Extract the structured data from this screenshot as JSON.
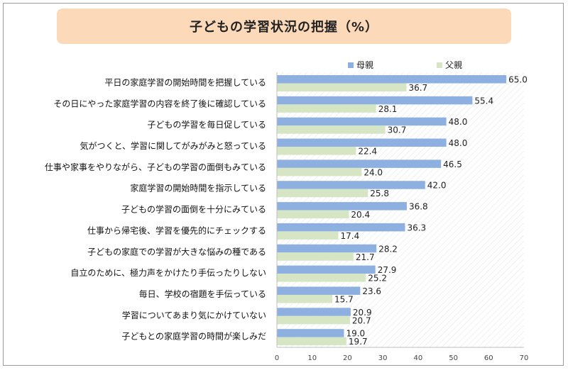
{
  "chart_data": {
    "type": "bar",
    "orientation": "horizontal",
    "title": "子どもの学習状況の把握（%）",
    "categories": [
      "平日の家庭学習の開始時間を把握している",
      "その日にやった家庭学習の内容を終了後に確認している",
      "子どもの学習を毎日促している",
      "気がつくと、学習に関してがみがみと怒っている",
      "仕事や家事をやりながら、子どもの学習の面倒もみている",
      "家庭学習の開始時間を指示している",
      "子どもの学習の面倒を十分にみている",
      "仕事から帰宅後、学習を優先的にチェックする",
      "子どもの家庭での学習が大きな悩みの種である",
      "自立のために、極力声をかけたり手伝ったりしない",
      "毎日、学校の宿題を手伝っている",
      "学習についてあまり気にかけていない",
      "子どもとの家庭学習の時間が楽しみだ"
    ],
    "series": [
      {
        "name": "母親",
        "color": "#8eb0e0",
        "values": [
          65.0,
          55.4,
          48.0,
          48.0,
          46.5,
          42.0,
          36.8,
          36.3,
          28.2,
          27.9,
          23.6,
          20.9,
          19.0
        ]
      },
      {
        "name": "父親",
        "color": "#d6e6c4",
        "values": [
          36.7,
          28.1,
          30.7,
          22.4,
          24.0,
          25.8,
          20.4,
          17.4,
          21.7,
          25.2,
          15.7,
          20.7,
          19.7
        ]
      }
    ],
    "xlim": [
      0,
      70
    ],
    "xticks": [
      0,
      10,
      20,
      30,
      40,
      50,
      60,
      70
    ],
    "legend_position": "top",
    "grid": false
  }
}
